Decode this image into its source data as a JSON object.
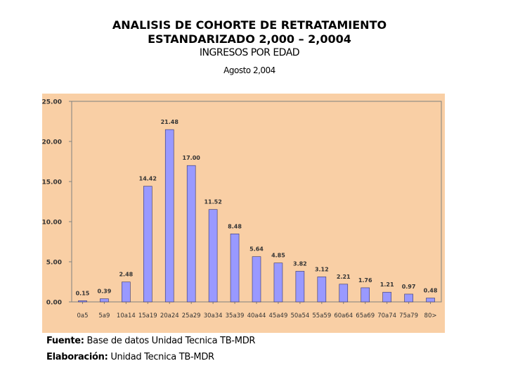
{
  "header": {
    "title_line1": "ANALISIS DE COHORTE DE RETRATAMIENTO",
    "title_line2": "ESTANDARIZADO 2,000 – 2,0004",
    "subtitle": "INGRESOS POR EDAD",
    "date": "Agosto 2,004"
  },
  "footer": {
    "source_label": "Fuente:",
    "source_text": " Base de datos Unidad Tecnica TB-MDR",
    "prepared_label": "Elaboración:",
    "prepared_text": " Unidad Tecnica TB-MDR"
  },
  "colors": {
    "background": "#f9cfa5",
    "bar_fill": "#9999ff",
    "bar_stroke": "#333366",
    "text": "#333333"
  },
  "chart_data": {
    "type": "bar",
    "categories": [
      "0a5",
      "5a9",
      "10a14",
      "15a19",
      "20a24",
      "25a29",
      "30a34",
      "35a39",
      "40a44",
      "45a49",
      "50a54",
      "55a59",
      "60a64",
      "65a69",
      "70a74",
      "75a79",
      "80>"
    ],
    "values": [
      0.15,
      0.39,
      2.48,
      14.42,
      21.48,
      17.0,
      11.52,
      8.48,
      5.64,
      4.85,
      3.82,
      3.12,
      2.21,
      1.76,
      1.21,
      0.97,
      0.48
    ],
    "value_labels": [
      "0.15",
      "0.39",
      "2.48",
      "14.42",
      "21.48",
      "17.00",
      "11.52",
      "8.48",
      "5.64",
      "4.85",
      "3.82",
      "3.12",
      "2.21",
      "1.76",
      "1.21",
      "0.97",
      "0.48"
    ],
    "yticks": [
      0,
      5,
      10,
      15,
      20,
      25
    ],
    "ytick_labels": [
      "0.00",
      "5.00",
      "10.00",
      "15.00",
      "20.00",
      "25.00"
    ],
    "ylim": [
      0,
      25
    ],
    "grid": false,
    "xlabel": "",
    "ylabel": ""
  }
}
